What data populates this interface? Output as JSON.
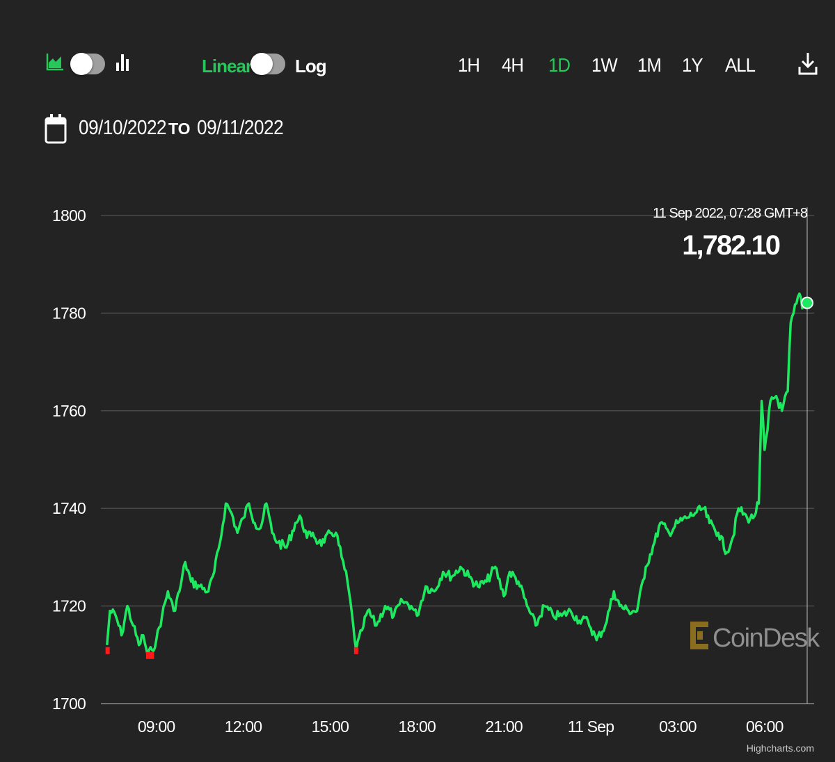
{
  "toolbar": {
    "chart_style_icons": [
      "area-chart-icon",
      "candlestick-chart-icon"
    ],
    "scale_linear_label": "Linear",
    "scale_log_label": "Log",
    "ranges": [
      "1H",
      "4H",
      "1D",
      "1W",
      "1M",
      "1Y",
      "ALL"
    ],
    "active_range": "1D",
    "download_icon": "download-icon"
  },
  "date_range": {
    "calendar_icon": "calendar-icon",
    "from": "09/10/2022",
    "to_label": "TO",
    "to": "09/11/2022"
  },
  "tooltip": {
    "timestamp": "11 Sep 2022, 07:28 GMT+8",
    "value": "1,782.10"
  },
  "watermark": "CoinDesk",
  "credit": "Highcharts.com",
  "colors": {
    "background": "#232323",
    "line_up": "#1ee85f",
    "line_down": "#ff1a1a",
    "accent": "#27c85a",
    "grid": "#4a4a4a"
  },
  "chart_data": {
    "type": "line",
    "ylim": [
      1700,
      1800
    ],
    "yticks": [
      1700,
      1720,
      1740,
      1760,
      1780,
      1800
    ],
    "xtick_labels": [
      "09:00",
      "12:00",
      "15:00",
      "18:00",
      "21:00",
      "11 Sep",
      "03:00",
      "06:00"
    ],
    "xtick_hours": [
      9,
      12,
      15,
      18,
      21,
      24,
      27,
      30
    ],
    "xlim_hours": [
      7.28,
      31.47
    ],
    "x_unit": "hours since 00:00 on 10 Sep 2022",
    "series": [
      {
        "x": [
          7.3,
          7.4,
          7.6,
          7.8,
          8.0,
          8.2,
          8.4,
          8.55,
          8.7,
          8.85,
          9.0,
          9.2,
          9.4,
          9.6,
          9.8,
          10.0,
          10.2,
          10.5,
          10.8,
          11.0,
          11.2,
          11.4,
          11.6,
          11.8,
          12.0,
          12.2,
          12.4,
          12.6,
          12.8,
          13.0,
          13.2,
          13.5,
          13.8,
          14.0,
          14.2,
          14.4,
          14.6,
          14.8,
          15.0,
          15.2,
          15.4,
          15.6,
          15.8,
          15.9,
          16.1,
          16.3,
          16.6,
          16.9,
          17.2,
          17.5,
          17.8,
          18.0,
          18.3,
          18.6,
          18.9,
          19.2,
          19.5,
          19.8,
          20.1,
          20.4,
          20.7,
          21.0,
          21.2,
          21.5,
          21.8,
          22.1,
          22.4,
          22.7,
          23.0,
          23.3,
          23.6,
          23.9,
          24.2,
          24.5,
          24.8,
          25.0,
          25.3,
          25.6,
          25.9,
          26.2,
          26.4,
          26.7,
          27.0,
          27.3,
          27.6,
          27.9,
          28.1,
          28.4,
          28.7,
          28.9,
          29.1,
          29.4,
          29.6,
          29.8,
          29.9,
          30.0,
          30.1,
          30.2,
          30.4,
          30.6,
          30.8,
          30.9,
          31.0,
          31.1,
          31.2,
          31.3,
          31.47
        ],
        "y": [
          1712,
          1719,
          1718,
          1714,
          1720,
          1716,
          1712,
          1714,
          1710,
          1711,
          1713,
          1718,
          1723,
          1719,
          1723,
          1729,
          1725,
          1724,
          1723,
          1727,
          1733,
          1741,
          1739,
          1735,
          1738,
          1741,
          1737,
          1736,
          1741,
          1735,
          1733,
          1732,
          1737,
          1738,
          1734,
          1735,
          1733,
          1733,
          1735,
          1735,
          1730,
          1725,
          1716,
          1711,
          1715,
          1719,
          1716,
          1720,
          1718,
          1721,
          1720,
          1718,
          1724,
          1723,
          1727,
          1726,
          1728,
          1726,
          1724,
          1725,
          1728,
          1722,
          1727,
          1725,
          1720,
          1716,
          1720,
          1718,
          1718,
          1719,
          1717,
          1717,
          1713,
          1716,
          1723,
          1720,
          1719,
          1719,
          1728,
          1733,
          1737,
          1735,
          1737,
          1738,
          1739,
          1740,
          1737,
          1735,
          1731,
          1734,
          1740,
          1738,
          1738,
          1741,
          1762,
          1752,
          1756,
          1762,
          1763,
          1760,
          1764,
          1778,
          1780,
          1782,
          1784,
          1781,
          1782.1
        ]
      }
    ],
    "down_markers": [
      {
        "x": 7.32,
        "y": 1711
      },
      {
        "x": 8.72,
        "y": 1710
      },
      {
        "x": 8.85,
        "y": 1710
      },
      {
        "x": 15.9,
        "y": 1711
      }
    ]
  }
}
